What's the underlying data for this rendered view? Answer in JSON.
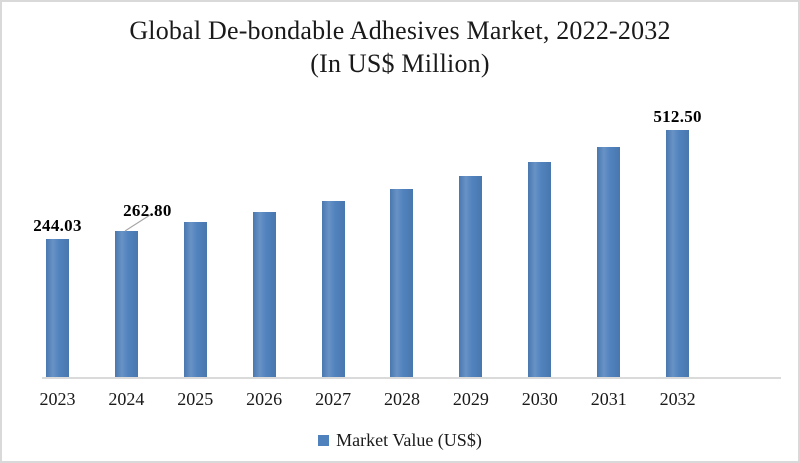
{
  "title": {
    "line1": "Global De-bondable Adhesives Market, 2022-2032",
    "line2": "(In US$ Million)"
  },
  "legend": {
    "label": "Market Value (US$)"
  },
  "chart_data": {
    "type": "bar",
    "title": "Global De-bondable Adhesives Market, 2022-2032 (In US$ Million)",
    "series_name": "Market Value (US$)",
    "categories": [
      "2023",
      "2024",
      "2025",
      "2026",
      "2027",
      "2028",
      "2029",
      "2030",
      "2031",
      "2032"
    ],
    "values": [
      244.03,
      262.8,
      285.68,
      310.56,
      337.6,
      366.99,
      398.95,
      433.69,
      471.45,
      512.5
    ],
    "data_labels_shown": [
      {
        "category": "2023",
        "text": "244.03"
      },
      {
        "category": "2024",
        "text": "262.80"
      },
      {
        "category": "2032",
        "text": "512.50"
      }
    ],
    "xlabel": "",
    "ylabel": "",
    "grid": false,
    "y_axis_visible": false,
    "legend_position": "bottom",
    "bar_color": "#4f81bd",
    "axis_line_color": "#dadada",
    "label_color": "#000000",
    "leader_line_color": "#a6a6a6",
    "background": "#ffffff",
    "border_color": "#d9d9d9"
  }
}
